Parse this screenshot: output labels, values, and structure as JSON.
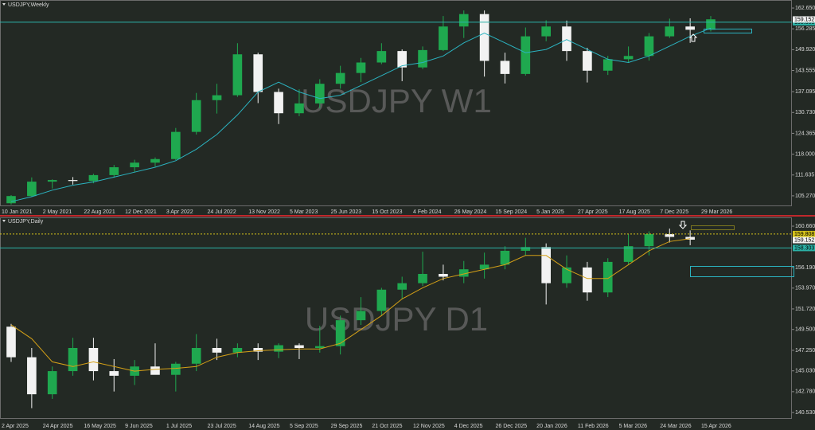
{
  "chart_data": [
    {
      "type": "candlestick",
      "title": "USDJPY,Weekly",
      "watermark": "USDJPY W1",
      "categories": [
        "10 Jan 2021",
        null,
        "2 May 2021",
        null,
        "22 Aug 2021",
        null,
        "12 Dec 2021",
        null,
        "3 Apr 2022",
        null,
        "24 Jul 2022",
        null,
        "13 Nov 2022",
        null,
        "5 Mar 2023",
        null,
        "25 Jun 2023",
        null,
        "15 Oct 2023",
        null,
        "4 Feb 2024",
        null,
        "26 May 2024",
        null,
        "15 Sep 2024",
        null,
        "5 Jan 2025",
        null,
        "27 Apr 2025",
        null,
        "17 Aug 2025",
        null,
        "7 Dec 2025",
        null,
        "29 Mar 2026"
      ],
      "open": [
        103.0,
        105.2,
        109.6,
        110.1,
        109.8,
        111.6,
        114.0,
        115.4,
        116.5,
        124.8,
        134.5,
        136.0,
        148.5,
        137.0,
        130.5,
        133.5,
        139.5,
        142.8,
        146.0,
        149.5,
        144.5,
        149.8,
        157.0,
        160.8,
        146.5,
        142.5,
        154.0,
        157.0,
        149.5,
        143.5,
        147.0,
        148.0,
        154.0,
        157.0,
        156.0
      ],
      "high": [
        105.5,
        110.9,
        110.3,
        111.0,
        112.0,
        114.7,
        116.3,
        117.0,
        126.0,
        136.7,
        139.5,
        151.9,
        149.0,
        138.0,
        137.8,
        140.9,
        145.0,
        147.4,
        151.9,
        150.0,
        150.9,
        160.2,
        161.9,
        161.9,
        149.0,
        156.7,
        158.9,
        158.8,
        150.5,
        148.0,
        150.9,
        155.0,
        159.4,
        159.5,
        160.2
      ],
      "low": [
        102.6,
        105.0,
        107.5,
        108.7,
        109.1,
        110.8,
        112.5,
        114.2,
        116.2,
        124.0,
        130.4,
        135.5,
        133.6,
        127.2,
        129.6,
        132.0,
        138.0,
        140.0,
        145.5,
        140.3,
        144.0,
        149.5,
        153.5,
        141.7,
        139.6,
        142.0,
        152.5,
        146.5,
        139.9,
        142.2,
        145.9,
        146.6,
        153.5,
        152.0,
        155.5
      ],
      "close": [
        105.2,
        109.6,
        110.1,
        109.8,
        111.6,
        114.0,
        115.4,
        116.5,
        124.8,
        134.5,
        136.0,
        148.5,
        137.0,
        130.5,
        133.5,
        139.5,
        142.8,
        146.0,
        149.5,
        144.5,
        149.8,
        157.0,
        160.8,
        146.5,
        142.5,
        154.0,
        157.0,
        149.5,
        143.5,
        147.0,
        148.0,
        154.0,
        157.0,
        156.0,
        159.2
      ],
      "up_color": "#1fa84f",
      "down_color": "#f2f2f2",
      "ma": {
        "color": "#2bb3c0",
        "values": [
          103.5,
          105,
          107,
          108.5,
          109.5,
          111,
          112.5,
          114,
          116,
          119.5,
          124,
          130,
          137,
          140,
          137,
          135,
          136,
          139,
          142,
          145,
          146,
          148,
          152,
          155,
          152,
          149,
          150,
          153,
          150,
          147,
          146,
          148,
          151,
          154,
          156.5
        ]
      },
      "ylim": [
        102.33,
        164.61
      ],
      "yticks": [
        {
          "value": 105.27,
          "label": "105.270"
        },
        111.635,
        {
          "value": 118,
          "label": "118.000"
        },
        124.365,
        {
          "value": 130.73,
          "label": "130.730"
        },
        137.095,
        143.555,
        {
          "value": 149.92,
          "label": "149.920"
        },
        156.285,
        {
          "value": 162.65,
          "label": "162.650"
        }
      ],
      "levels": [
        {
          "value": 158.303,
          "color": "#2bb3a8",
          "style": "solid"
        }
      ],
      "current_price": 159.152
    },
    {
      "type": "candlestick",
      "title": "USDJPY,Daily",
      "watermark": "USDJPY D1",
      "categories": [
        "2 Apr 2025",
        null,
        "24 Apr 2025",
        null,
        "16 May 2025",
        null,
        "9 Jun 2025",
        null,
        "1 Jul 2025",
        null,
        "23 Jul 2025",
        null,
        "14 Aug 2025",
        null,
        "5 Sep 2025",
        null,
        "29 Sep 2025",
        null,
        "21 Oct 2025",
        null,
        "12 Nov 2025",
        null,
        "4 Dec 2025",
        null,
        "26 Dec 2025",
        null,
        "20 Jan 2026",
        null,
        "11 Feb 2026",
        null,
        "5 Mar 2026",
        null,
        "24 Mar 2026",
        null,
        "15 Apr 2026"
      ],
      "open": [
        149.8,
        146.5,
        142.5,
        145.0,
        147.5,
        145.0,
        144.5,
        145.5,
        144.6,
        145.8,
        147.5,
        147.0,
        147.5,
        147.1,
        147.8,
        147.5,
        147.7,
        150.5,
        151.5,
        153.8,
        154.5,
        155.5,
        155.2,
        156.0,
        156.5,
        158.0,
        158.4,
        154.5,
        156.2,
        153.5,
        156.8,
        158.5,
        159.8,
        159.5,
        null
      ],
      "high": [
        150.1,
        147.5,
        145.5,
        148.6,
        148.6,
        146.3,
        146.2,
        148.0,
        146.0,
        149.0,
        148.5,
        148.0,
        148.0,
        148.0,
        148.0,
        149.9,
        151.0,
        153.0,
        154.0,
        155.2,
        157.9,
        156.5,
        156.9,
        157.8,
        158.5,
        159.4,
        158.8,
        157.5,
        156.8,
        157.2,
        159.8,
        160.1,
        160.4,
        160.2,
        null
      ],
      "low": [
        146.0,
        141.0,
        142.0,
        144.5,
        144.0,
        142.8,
        143.5,
        144.8,
        142.8,
        145.0,
        146.2,
        146.5,
        146.2,
        146.4,
        146.3,
        147.0,
        146.8,
        150.0,
        151.0,
        152.8,
        154.2,
        154.8,
        154.5,
        155.0,
        156.0,
        157.5,
        152.2,
        154.0,
        152.6,
        153.0,
        156.5,
        157.5,
        158.9,
        158.6,
        null
      ],
      "close": [
        146.5,
        142.5,
        145.0,
        147.5,
        145.0,
        144.5,
        145.5,
        144.6,
        145.8,
        147.5,
        147.0,
        147.5,
        147.1,
        147.8,
        147.5,
        147.7,
        150.5,
        151.5,
        153.8,
        154.5,
        155.5,
        155.2,
        156.0,
        156.5,
        158.0,
        158.4,
        154.5,
        156.2,
        153.5,
        156.8,
        158.5,
        159.8,
        159.5,
        159.2,
        null
      ],
      "up_color": "#1fa84f",
      "down_color": "#f2f2f2",
      "ma": {
        "color": "#d4a017",
        "values": [
          150,
          148.5,
          146,
          145.5,
          146,
          145.5,
          145,
          145.2,
          145.3,
          145.5,
          146.5,
          147,
          147.2,
          147.3,
          147.4,
          147.4,
          148,
          149.5,
          151,
          152.8,
          154,
          155,
          155.5,
          156,
          156.5,
          157.5,
          157.5,
          156,
          155,
          155,
          156.5,
          158,
          159,
          159.3,
          null
        ]
      },
      "ylim": [
        139.93,
        161.35
      ],
      "yticks": [
        {
          "value": 140.53,
          "label": "140.530"
        },
        {
          "value": 142.78,
          "label": "142.780"
        },
        {
          "value": 145.03,
          "label": "145.030"
        },
        {
          "value": 147.25,
          "label": "147.250"
        },
        {
          "value": 149.5,
          "label": "149.500"
        },
        {
          "value": 151.72,
          "label": "151.720"
        },
        {
          "value": 153.97,
          "label": "153.970"
        },
        {
          "value": 156.19,
          "label": "156.190"
        },
        {
          "value": 160.66,
          "label": "160.660"
        }
      ],
      "levels": [
        {
          "value": 158.303,
          "color": "#2bb3a8",
          "style": "solid"
        },
        {
          "value": 159.808,
          "color": "#d4c21a",
          "style": "dotted"
        }
      ],
      "current_price": 159.152
    }
  ]
}
